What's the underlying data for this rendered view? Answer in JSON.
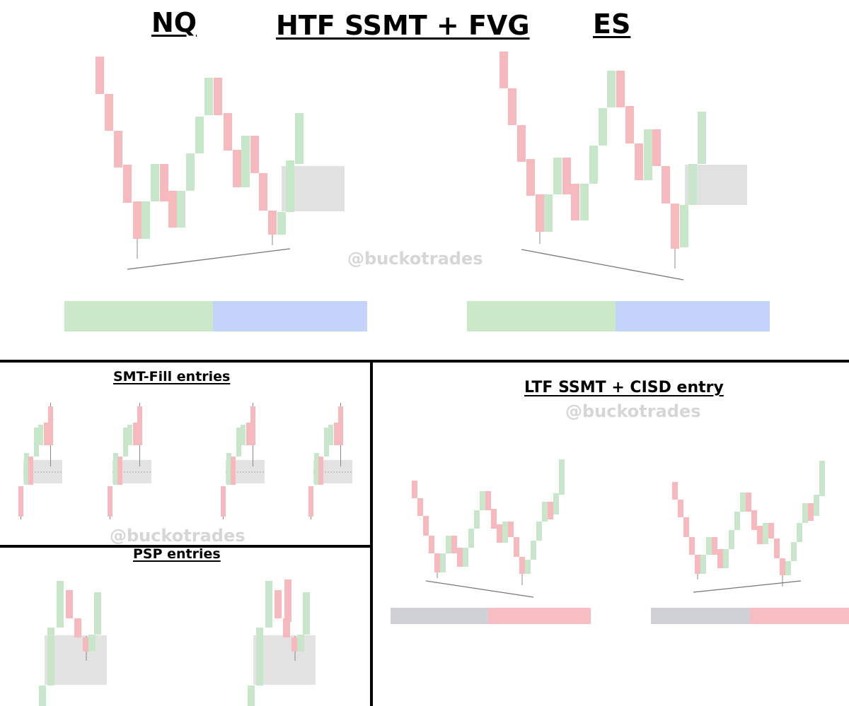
{
  "header": {
    "left_label": "NQ",
    "center_label": "HTF SSMT + FVG",
    "right_label": "ES"
  },
  "sections": {
    "smt_fill": "SMT-Fill entries",
    "psp": "PSP entries",
    "ltf": "LTF SSMT + CISD entry"
  },
  "watermark": "@buckotrades",
  "colors": {
    "bull": "#c8e6c9",
    "bear": "#f6b9bd",
    "gap_box": "#dcdcdc",
    "bar_green": "#cbe8c9",
    "bar_blue": "#c3d3fa",
    "bar_gray": "#cfd1d6",
    "bar_red": "#f8bcc3"
  },
  "icons": {
    "bullish_candle": "bullish-candle-icon",
    "bearish_candle": "bearish-candle-icon"
  }
}
